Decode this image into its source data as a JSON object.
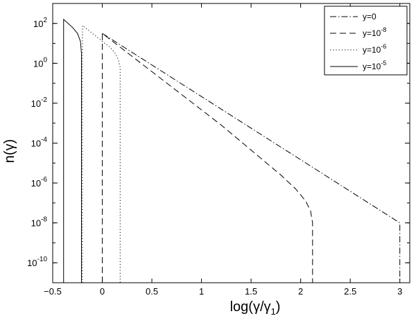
{
  "chart_data": {
    "type": "line",
    "title": "",
    "xlabel": "log(γ/γ1)",
    "xlabel_parts": {
      "main": "log(γ/γ",
      "sub": "1",
      "close": ")"
    },
    "ylabel": "n(γ)",
    "xlim": [
      -0.5,
      3.1
    ],
    "ylim_exponent": [
      -11,
      3
    ],
    "yscale": "log",
    "grid": false,
    "legend_position": "top-right",
    "x_ticks": [
      "−0.5",
      "0",
      "0.5",
      "1",
      "1.5",
      "2",
      "2.5",
      "3"
    ],
    "x_tick_values": [
      -0.5,
      0,
      0.5,
      1,
      1.5,
      2,
      2.5,
      3
    ],
    "y_tick_exponents": [
      "2",
      "0",
      "-2",
      "-4",
      "-6",
      "-8",
      "-10"
    ],
    "y_tick_base": "10",
    "series": [
      {
        "name": "y=0",
        "style": "dashdot",
        "points": [
          [
            0.0,
            1.5
          ],
          [
            3.0,
            -8.0
          ],
          [
            3.0,
            -11.0
          ]
        ]
      },
      {
        "name": "y=10^-8",
        "legend_base": "y=10",
        "legend_exp": "-8",
        "style": "dashed",
        "points": [
          [
            0.0,
            -11.0
          ],
          [
            0.0,
            1.5
          ],
          [
            1.2,
            -3.1
          ],
          [
            1.8,
            -5.6
          ],
          [
            1.95,
            -6.3
          ],
          [
            2.05,
            -6.9
          ],
          [
            2.1,
            -7.4
          ],
          [
            2.12,
            -8.0
          ],
          [
            2.12,
            -11.0
          ]
        ]
      },
      {
        "name": "y=10^-6",
        "legend_base": "y=10",
        "legend_exp": "-6",
        "style": "dotted",
        "points": [
          [
            -0.2,
            -11.0
          ],
          [
            -0.2,
            1.9
          ],
          [
            0.0,
            1.1
          ],
          [
            0.08,
            0.8
          ],
          [
            0.13,
            0.5
          ],
          [
            0.16,
            0.2
          ],
          [
            0.18,
            -0.2
          ],
          [
            0.18,
            -11.0
          ]
        ]
      },
      {
        "name": "y=10^-5",
        "legend_base": "y=10",
        "legend_exp": "-5",
        "style": "solid",
        "points": [
          [
            -0.39,
            -11.0
          ],
          [
            -0.39,
            2.2
          ],
          [
            -0.3,
            1.8
          ],
          [
            -0.25,
            1.5
          ],
          [
            -0.22,
            1.1
          ],
          [
            -0.21,
            0.5
          ],
          [
            -0.21,
            -11.0
          ]
        ]
      }
    ]
  }
}
